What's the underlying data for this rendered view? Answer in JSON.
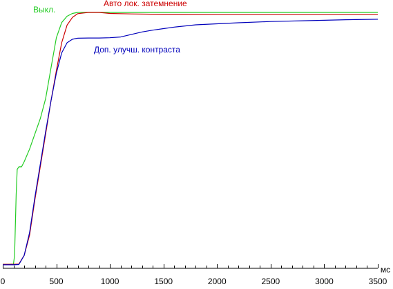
{
  "chart_data": {
    "type": "line",
    "xlabel": "",
    "ylabel": "",
    "x_unit_label": "мс",
    "xlim": [
      0,
      3500
    ],
    "ylim": [
      0,
      100
    ],
    "x_ticks": [
      0,
      500,
      1000,
      1500,
      2000,
      2500,
      3000,
      3500
    ],
    "x_minor_tick_step": 100,
    "grid": false,
    "legend": "inline labels",
    "series": [
      {
        "name": "Выкл.",
        "color": "#22cc22",
        "points": [
          [
            0,
            0.5
          ],
          [
            50,
            0.5
          ],
          [
            100,
            0.6
          ],
          [
            110,
            4
          ],
          [
            125,
            28
          ],
          [
            135,
            38
          ],
          [
            150,
            39
          ],
          [
            175,
            39
          ],
          [
            200,
            41
          ],
          [
            250,
            46
          ],
          [
            300,
            52
          ],
          [
            350,
            58
          ],
          [
            400,
            66
          ],
          [
            450,
            78
          ],
          [
            500,
            90
          ],
          [
            550,
            96
          ],
          [
            600,
            98.5
          ],
          [
            650,
            99.6
          ],
          [
            700,
            100
          ],
          [
            800,
            100
          ],
          [
            1000,
            100
          ],
          [
            1500,
            100
          ],
          [
            2000,
            100
          ],
          [
            2500,
            100
          ],
          [
            3000,
            100
          ],
          [
            3500,
            100
          ]
        ]
      },
      {
        "name": "Авто лок. затемнение",
        "color": "#cc0000",
        "points": [
          [
            0,
            0.5
          ],
          [
            100,
            0.5
          ],
          [
            150,
            0.6
          ],
          [
            200,
            4
          ],
          [
            250,
            12
          ],
          [
            300,
            26
          ],
          [
            350,
            39
          ],
          [
            400,
            52
          ],
          [
            450,
            65
          ],
          [
            500,
            77
          ],
          [
            550,
            88
          ],
          [
            600,
            95
          ],
          [
            650,
            98
          ],
          [
            700,
            99.5
          ],
          [
            800,
            100
          ],
          [
            900,
            100
          ],
          [
            1000,
            99.6
          ],
          [
            1200,
            99.4
          ],
          [
            1500,
            99.2
          ],
          [
            2000,
            99.1
          ],
          [
            2500,
            99.1
          ],
          [
            3000,
            99.1
          ],
          [
            3500,
            99.1
          ]
        ]
      },
      {
        "name": "Доп. улучш. контраста",
        "color": "#0000bb",
        "points": [
          [
            0,
            0.3
          ],
          [
            100,
            0.3
          ],
          [
            150,
            0.4
          ],
          [
            200,
            4
          ],
          [
            250,
            13
          ],
          [
            300,
            27
          ],
          [
            350,
            40
          ],
          [
            400,
            53
          ],
          [
            450,
            65
          ],
          [
            500,
            76
          ],
          [
            550,
            84
          ],
          [
            600,
            88
          ],
          [
            650,
            89.4
          ],
          [
            700,
            89.8
          ],
          [
            800,
            89.9
          ],
          [
            900,
            89.9
          ],
          [
            1000,
            90
          ],
          [
            1100,
            90.3
          ],
          [
            1200,
            91.3
          ],
          [
            1300,
            92.3
          ],
          [
            1400,
            93
          ],
          [
            1500,
            93.6
          ],
          [
            1600,
            94.2
          ],
          [
            1800,
            95.1
          ],
          [
            2000,
            95.5
          ],
          [
            2200,
            95.9
          ],
          [
            2500,
            96.4
          ],
          [
            2800,
            96.7
          ],
          [
            3000,
            96.9
          ],
          [
            3200,
            97.1
          ],
          [
            3500,
            97.3
          ]
        ]
      }
    ]
  }
}
